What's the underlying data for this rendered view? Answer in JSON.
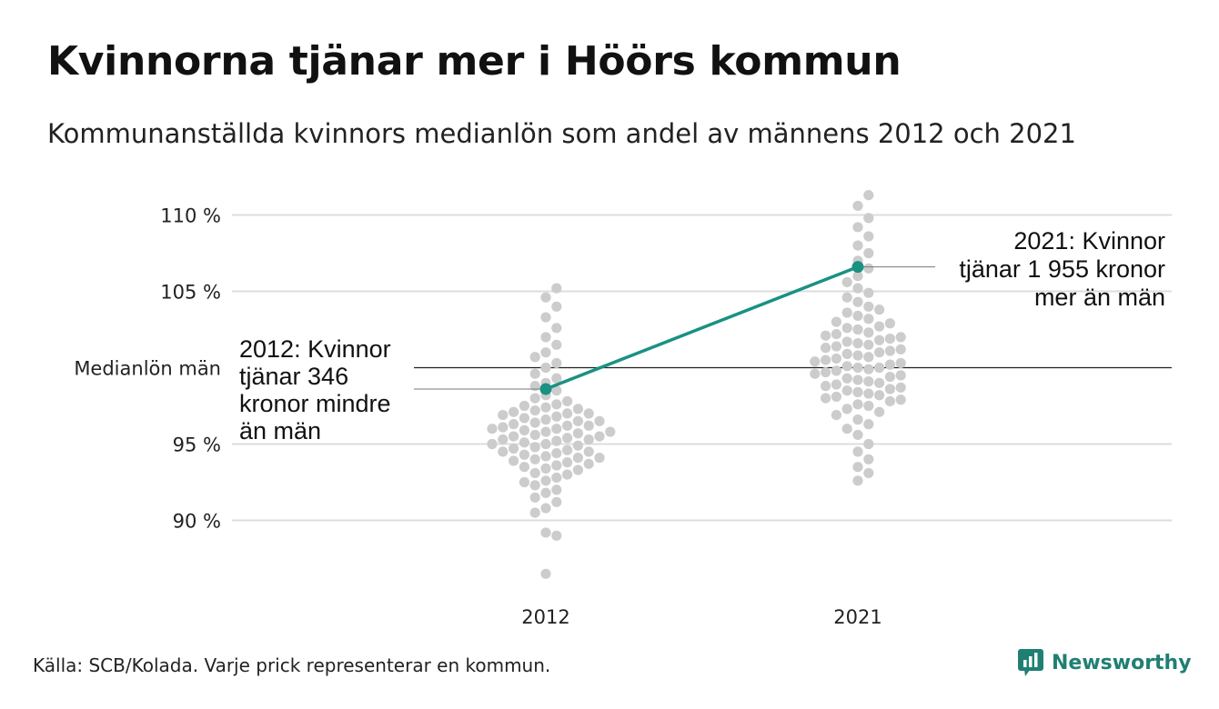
{
  "title": "Kvinnorna tjänar mer i Höörs kommun",
  "subtitle": "Kommunanställda kvinnors medianlön som andel av männens 2012 och 2021",
  "source": "Källa: SCB/Kolada. Varje prick representerar en kommun.",
  "brand": {
    "name": "Newsworthy",
    "icon": "newsworthy-logo-icon"
  },
  "colors": {
    "dot": "#cccccc",
    "highlight": "#1a9182",
    "grid": "#dddddd",
    "reference_line": "#222222",
    "brand": "#1f7f72"
  },
  "chart_data": {
    "type": "scatter",
    "subtype": "beeswarm",
    "categories": [
      "2012",
      "2021"
    ],
    "y_ticks": [
      90,
      95,
      105,
      110
    ],
    "y_tick_labels": [
      "90 %",
      "95 %",
      "105 %",
      "110 %"
    ],
    "ylim": [
      86,
      112
    ],
    "reference_line": {
      "value": 100,
      "label": "Medianlön män"
    },
    "grid": true,
    "series": [
      {
        "name": "2012",
        "values": [
          86.5,
          89.0,
          89.2,
          90.5,
          90.8,
          91.2,
          91.5,
          91.8,
          92.0,
          92.3,
          92.5,
          92.6,
          92.8,
          93.0,
          93.1,
          93.3,
          93.4,
          93.5,
          93.6,
          93.7,
          93.8,
          93.9,
          94.0,
          94.1,
          94.1,
          94.2,
          94.3,
          94.4,
          94.5,
          94.5,
          94.6,
          94.7,
          94.8,
          94.9,
          95.0,
          95.0,
          95.1,
          95.2,
          95.3,
          95.3,
          95.4,
          95.5,
          95.5,
          95.6,
          95.7,
          95.8,
          95.8,
          95.9,
          96.0,
          96.0,
          96.1,
          96.2,
          96.2,
          96.3,
          96.4,
          96.5,
          96.5,
          96.6,
          96.7,
          96.8,
          96.9,
          97.0,
          97.0,
          97.1,
          97.2,
          97.3,
          97.4,
          97.5,
          97.6,
          97.8,
          98.0,
          98.2,
          98.5,
          98.8,
          99.0,
          99.3,
          99.6,
          100.0,
          100.3,
          100.7,
          101.0,
          101.5,
          102.0,
          102.6,
          103.3,
          104.0,
          104.6,
          105.2
        ],
        "highlight": {
          "value": 98.6,
          "label_lines": [
            "2012: Kvinnor",
            "tjänar 346",
            "kronor mindre",
            "än män"
          ]
        }
      },
      {
        "name": "2021",
        "values": [
          92.6,
          93.1,
          93.5,
          94.0,
          94.5,
          95.0,
          95.6,
          96.0,
          96.3,
          96.6,
          96.9,
          97.1,
          97.3,
          97.5,
          97.6,
          97.8,
          97.9,
          98.0,
          98.1,
          98.2,
          98.3,
          98.4,
          98.5,
          98.6,
          98.7,
          98.8,
          98.9,
          99.0,
          99.1,
          99.2,
          99.3,
          99.4,
          99.5,
          99.6,
          99.7,
          99.8,
          99.9,
          100.0,
          100.0,
          100.1,
          100.2,
          100.3,
          100.4,
          100.5,
          100.6,
          100.7,
          100.8,
          100.9,
          101.0,
          101.1,
          101.2,
          101.3,
          101.4,
          101.5,
          101.6,
          101.7,
          101.8,
          101.9,
          102.0,
          102.1,
          102.2,
          102.3,
          102.5,
          102.6,
          102.7,
          102.9,
          103.0,
          103.2,
          103.4,
          103.6,
          103.8,
          104.0,
          104.3,
          104.6,
          104.9,
          105.2,
          105.6,
          106.0,
          106.5,
          107.0,
          107.5,
          108.0,
          108.6,
          109.2,
          109.8,
          110.6,
          111.3
        ],
        "highlight": {
          "value": 106.6,
          "label_lines": [
            "2021: Kvinnor",
            "tjänar 1 955 kronor",
            "mer än män"
          ]
        }
      }
    ],
    "highlight_series": "Höörs kommun"
  }
}
